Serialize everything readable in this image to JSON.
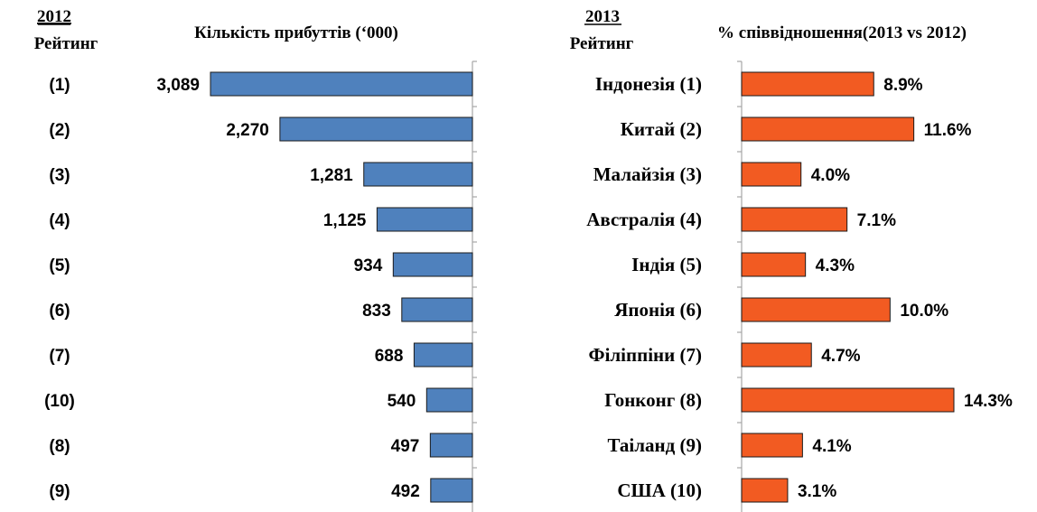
{
  "headers": {
    "left_year": "2012",
    "left_rank": "Рейтинг",
    "left_title": "Кількість прибуттів (‘000)",
    "right_year": "2013",
    "right_rank": "Рейтинг",
    "right_title": "% співвідношення(2013 vs 2012)"
  },
  "colors": {
    "arrivals_bar": "#4f81bd",
    "ratio_bar": "#f25b22",
    "bar_outline": "#1a1a1a",
    "axis": "#a6a6a6"
  },
  "chart_data": [
    {
      "type": "bar",
      "orientation": "horizontal",
      "direction": "right-to-left",
      "title": "Кількість прибуттів (‘000)",
      "category_header": "2012 Рейтинг",
      "categories": [
        "(1)",
        "(2)",
        "(3)",
        "(4)",
        "(5)",
        "(6)",
        "(7)",
        "(10)",
        "(8)",
        "(9)"
      ],
      "values": [
        3089,
        2270,
        1281,
        1125,
        934,
        833,
        688,
        540,
        497,
        492
      ],
      "value_labels": [
        "3,089",
        "2,270",
        "1,281",
        "1,125",
        "934",
        "833",
        "688",
        "540",
        "497",
        "492"
      ],
      "xlim": [
        0,
        3089
      ],
      "grid": false
    },
    {
      "type": "bar",
      "orientation": "horizontal",
      "title": "% співвідношення(2013 vs 2012)",
      "category_header": "2013 Рейтинг",
      "categories": [
        "Індонезія (1)",
        "Китай (2)",
        "Малайзія (3)",
        "Австралія (4)",
        "Індія (5)",
        "Японія (6)",
        "Філіппіни (7)",
        "Гонконг (8)",
        "Таіланд (9)",
        "США (10)"
      ],
      "values": [
        8.9,
        11.6,
        4.0,
        7.1,
        4.3,
        10.0,
        4.7,
        14.3,
        4.1,
        3.1
      ],
      "value_labels": [
        "8.9%",
        "11.6%",
        "4.0%",
        "7.1%",
        "4.3%",
        "10.0%",
        "4.7%",
        "14.3%",
        "4.1%",
        "3.1%"
      ],
      "xlim": [
        0,
        14.3
      ],
      "grid": false
    }
  ]
}
